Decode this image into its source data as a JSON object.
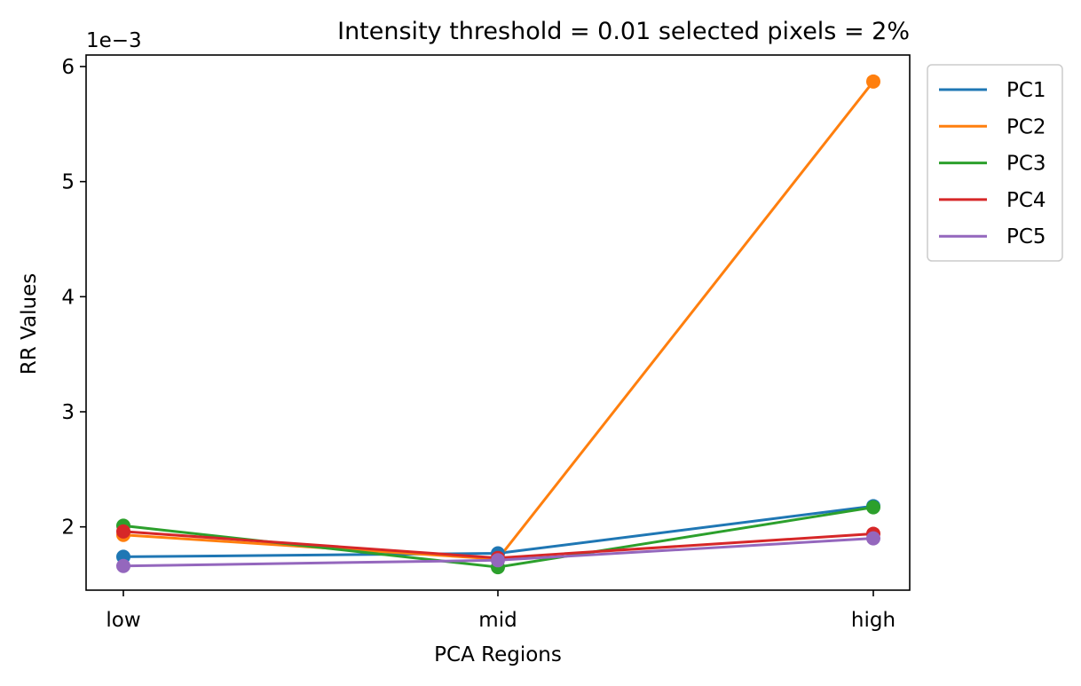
{
  "chart_data": {
    "type": "line",
    "title": "Intensity threshold = 0.01 selected pixels = 2%",
    "xlabel": "PCA Regions",
    "ylabel": "RR Values",
    "offset_label": "1e−3",
    "categories": [
      "low",
      "mid",
      "high"
    ],
    "y_ticks": [
      2,
      3,
      4,
      5,
      6
    ],
    "y_tick_labels": [
      "2",
      "3",
      "4",
      "5",
      "6"
    ],
    "ylim": [
      1.45,
      6.1
    ],
    "y_scale_note": "values in units of 1e-3",
    "grid": false,
    "legend_position": "outside-top-right",
    "markers": "circle",
    "series": [
      {
        "name": "PC1",
        "color": "#1f77b4",
        "values": [
          1.74,
          1.77,
          2.18
        ]
      },
      {
        "name": "PC2",
        "color": "#ff7f0e",
        "values": [
          1.93,
          1.72,
          5.87
        ]
      },
      {
        "name": "PC3",
        "color": "#2ca02c",
        "values": [
          2.01,
          1.65,
          2.17
        ]
      },
      {
        "name": "PC4",
        "color": "#d62728",
        "values": [
          1.96,
          1.73,
          1.94
        ]
      },
      {
        "name": "PC5",
        "color": "#9467bd",
        "values": [
          1.66,
          1.71,
          1.9
        ]
      }
    ]
  }
}
